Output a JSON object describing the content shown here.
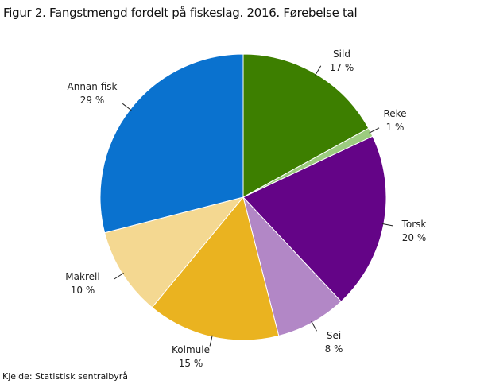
{
  "title": "Figur 2. Fangstmengd fordelt på fiskeslag. 2016. Førebelse tal",
  "source": "Kjelde: Statistisk sentralbyrå",
  "chart_data": {
    "type": "pie",
    "title": "Figur 2. Fangstmengd fordelt på fiskeslag. 2016. Førebelse tal",
    "start": "top, clockwise",
    "slices": [
      {
        "label": "Sild",
        "value": 17,
        "value_label": "17 %",
        "color": "#3d7f00"
      },
      {
        "label": "Reke",
        "value": 1,
        "value_label": "1 %",
        "color": "#9ccc7f"
      },
      {
        "label": "Torsk",
        "value": 20,
        "value_label": "20 %",
        "color": "#640487"
      },
      {
        "label": "Sei",
        "value": 8,
        "value_label": "8 %",
        "color": "#b287c6"
      },
      {
        "label": "Kolmule",
        "value": 15,
        "value_label": "15 %",
        "color": "#eab320"
      },
      {
        "label": "Makrell",
        "value": 10,
        "value_label": "10 %",
        "color": "#f4d891"
      },
      {
        "label": "Annan fisk",
        "value": 29,
        "value_label": "29 %",
        "color": "#0a72cf"
      }
    ]
  }
}
